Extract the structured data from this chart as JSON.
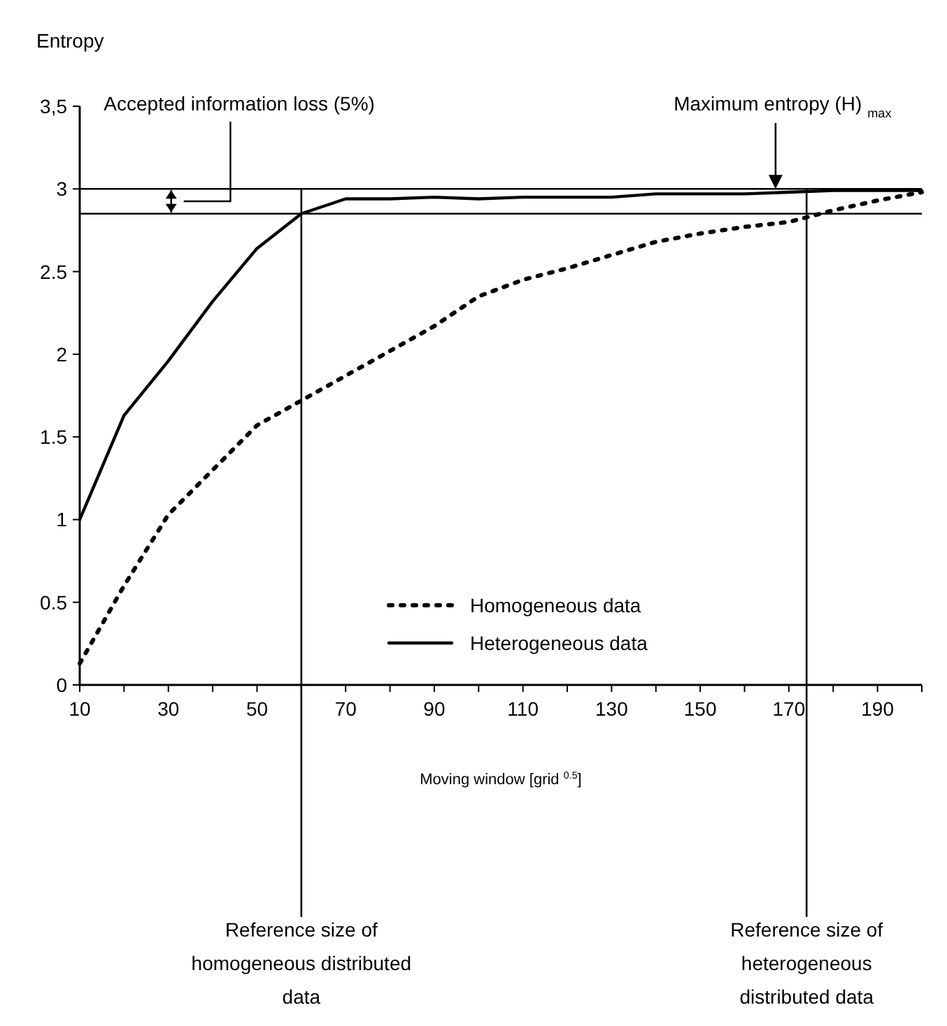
{
  "chart_data": {
    "type": "line",
    "ylabel": "Entropy",
    "xlabel": "Moving window [grid $^{0.5}$]",
    "x": [
      10,
      20,
      30,
      40,
      50,
      60,
      70,
      80,
      90,
      100,
      110,
      120,
      130,
      140,
      150,
      160,
      170,
      180,
      190,
      200
    ],
    "series": [
      {
        "name": "Homogeneous data",
        "color": "#000000",
        "line_style": "dotted",
        "values": [
          0.13,
          0.6,
          1.03,
          1.3,
          1.57,
          1.72,
          1.87,
          2.02,
          2.17,
          2.35,
          2.45,
          2.52,
          2.6,
          2.68,
          2.73,
          2.77,
          2.8,
          2.87,
          2.93,
          2.98
        ]
      },
      {
        "name": "Heterogeneous data",
        "color": "#000000",
        "line_style": "solid",
        "values": [
          1.0,
          1.63,
          1.96,
          2.32,
          2.64,
          2.85,
          2.94,
          2.94,
          2.95,
          2.94,
          2.95,
          2.95,
          2.95,
          2.97,
          2.97,
          2.97,
          2.98,
          2.99,
          2.99,
          2.99
        ]
      }
    ],
    "xlim": [
      10,
      200
    ],
    "ylim": [
      0,
      3.5
    ],
    "xticks": [
      10,
      {
        "value": 20,
        "label": null
      },
      30,
      {
        "value": 40,
        "label": null
      },
      50,
      {
        "value": 60,
        "label": null
      },
      70,
      {
        "value": 80,
        "label": null
      },
      90,
      {
        "value": 100,
        "label": null
      },
      110,
      {
        "value": 120,
        "label": null
      },
      130,
      {
        "value": 140,
        "label": null
      },
      150,
      {
        "value": 160,
        "label": null
      },
      170,
      {
        "value": 180,
        "label": null
      },
      190,
      {
        "value": 200,
        "label": null
      }
    ],
    "yticks": [
      0,
      0.5,
      1,
      1.5,
      2,
      2.5,
      3,
      {
        "value": 3.5,
        "label": "3,5"
      }
    ],
    "ref_lines": [
      {
        "axis": "y",
        "value": 3,
        "label": "Maximum entropy (H) $_{max}$"
      },
      {
        "axis": "y",
        "value": 2.85,
        "label": null
      },
      {
        "axis": "x",
        "value": 60,
        "label": "Reference size of homogeneous distributed data"
      },
      {
        "axis": "x",
        "value": 174,
        "label": "Reference size of heterogeneous distributed data"
      }
    ],
    "annotations": [
      "Accepted information loss (5%)"
    ],
    "legend": "bottom",
    "marker": "none",
    "grid": false
  }
}
